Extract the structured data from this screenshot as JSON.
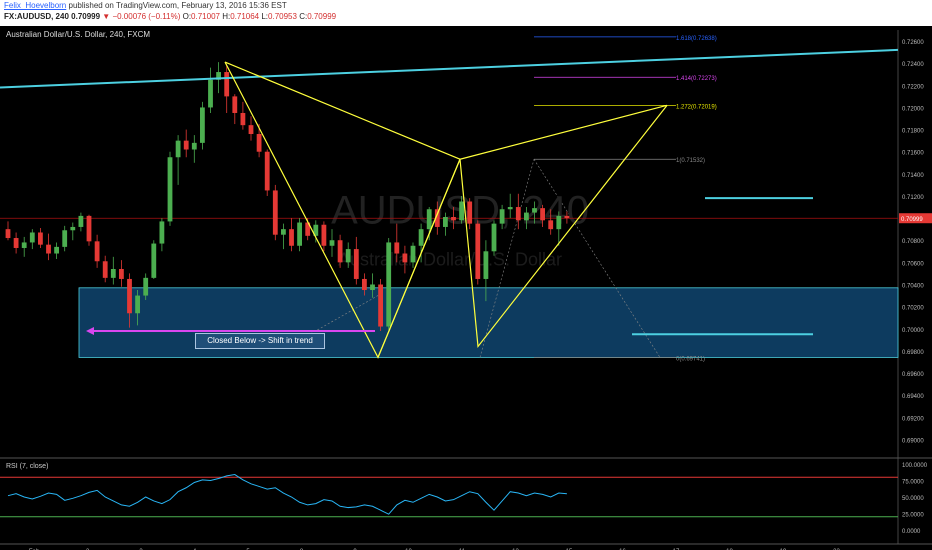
{
  "header": {
    "author": "Felix_Hoevelborn",
    "published": "published on TradingView.com, February 13, 2016 15:36 EST",
    "symbol_tf": "FX:AUDUSD, 240",
    "last_price": "0.70999",
    "change": "−0.00076 (−0.11%)",
    "ohlc": {
      "o_label": "O:",
      "o": "0.71007",
      "h_label": "H:",
      "h": "0.71064",
      "l_label": "L:",
      "l": "0.70953",
      "c_label": "C:",
      "c": "0.70999"
    }
  },
  "instrument_label": "Australian Dollar/U.S. Dollar, 240, FXCM",
  "callout_text": "Closed Below -> Shift in trend",
  "rsi_label": "RSI (7, close)",
  "colors": {
    "up": "#4caf50",
    "down": "#e53935",
    "trend": "#4dd0e1",
    "pattern": "#ffff3c",
    "zone_fill": "#0d3b5f",
    "zone_border": "#4dd0e1",
    "arrow": "#d946ef"
  },
  "chart_data": {
    "type": "candlestick",
    "y_axis_ticks": [
      "0.72600",
      "0.72400",
      "0.72200",
      "0.72000",
      "0.71800",
      "0.71600",
      "0.71400",
      "0.71200",
      "0.71000",
      "0.70800",
      "0.70600",
      "0.70400",
      "0.70200",
      "0.70000",
      "0.69800",
      "0.69600",
      "0.69400",
      "0.69200",
      "0.69000"
    ],
    "ylim": [
      0.6885,
      0.727
    ],
    "x_axis_ticks": [
      "Feb",
      "2",
      "3",
      "4",
      "5",
      "8",
      "9",
      "10",
      "11",
      "12",
      "15",
      "16",
      "17",
      "18",
      "19",
      "22"
    ],
    "current_price_label": "0.70999",
    "candles": [
      [
        0.709,
        0.7097,
        0.708,
        0.7082
      ],
      [
        0.7082,
        0.7087,
        0.7068,
        0.7073
      ],
      [
        0.7073,
        0.7083,
        0.7065,
        0.7078
      ],
      [
        0.7078,
        0.709,
        0.7072,
        0.7087
      ],
      [
        0.7087,
        0.7091,
        0.7073,
        0.7076
      ],
      [
        0.7076,
        0.7086,
        0.7062,
        0.7068
      ],
      [
        0.7068,
        0.7078,
        0.7063,
        0.7074
      ],
      [
        0.7074,
        0.7093,
        0.707,
        0.7089
      ],
      [
        0.7089,
        0.7096,
        0.708,
        0.7092
      ],
      [
        0.7092,
        0.7105,
        0.7088,
        0.7102
      ],
      [
        0.7102,
        0.7103,
        0.7075,
        0.7079
      ],
      [
        0.7079,
        0.7085,
        0.7055,
        0.7061
      ],
      [
        0.7061,
        0.7066,
        0.7042,
        0.7046
      ],
      [
        0.7046,
        0.7065,
        0.704,
        0.7054
      ],
      [
        0.7054,
        0.7062,
        0.7038,
        0.7045
      ],
      [
        0.7045,
        0.705,
        0.7001,
        0.7014
      ],
      [
        0.7014,
        0.7035,
        0.7003,
        0.703
      ],
      [
        0.703,
        0.705,
        0.7026,
        0.7046
      ],
      [
        0.7046,
        0.708,
        0.7045,
        0.7077
      ],
      [
        0.7077,
        0.71,
        0.707,
        0.7097
      ],
      [
        0.7097,
        0.716,
        0.7093,
        0.7155
      ],
      [
        0.7155,
        0.7175,
        0.713,
        0.717
      ],
      [
        0.717,
        0.718,
        0.7155,
        0.7162
      ],
      [
        0.7162,
        0.7175,
        0.715,
        0.7168
      ],
      [
        0.7168,
        0.7205,
        0.7162,
        0.72
      ],
      [
        0.72,
        0.7236,
        0.7195,
        0.7225
      ],
      [
        0.7225,
        0.7241,
        0.7213,
        0.7232
      ],
      [
        0.7232,
        0.7238,
        0.7195,
        0.721
      ],
      [
        0.721,
        0.7212,
        0.7185,
        0.7195
      ],
      [
        0.7195,
        0.7205,
        0.718,
        0.7184
      ],
      [
        0.7184,
        0.7192,
        0.717,
        0.7176
      ],
      [
        0.7176,
        0.7185,
        0.7155,
        0.716
      ],
      [
        0.716,
        0.7162,
        0.712,
        0.7125
      ],
      [
        0.7125,
        0.713,
        0.708,
        0.7085
      ],
      [
        0.7085,
        0.7095,
        0.7072,
        0.709
      ],
      [
        0.709,
        0.71,
        0.707,
        0.7075
      ],
      [
        0.7075,
        0.71,
        0.707,
        0.7096
      ],
      [
        0.7096,
        0.71,
        0.708,
        0.7084
      ],
      [
        0.7084,
        0.7098,
        0.7078,
        0.7094
      ],
      [
        0.7094,
        0.7097,
        0.707,
        0.7075
      ],
      [
        0.7075,
        0.709,
        0.7065,
        0.708
      ],
      [
        0.708,
        0.7085,
        0.7055,
        0.706
      ],
      [
        0.706,
        0.7078,
        0.7055,
        0.7072
      ],
      [
        0.7072,
        0.7083,
        0.704,
        0.7045
      ],
      [
        0.7045,
        0.705,
        0.703,
        0.7035
      ],
      [
        0.7035,
        0.705,
        0.7028,
        0.704
      ],
      [
        0.704,
        0.7045,
        0.6998,
        0.7002
      ],
      [
        0.7002,
        0.7082,
        0.6999,
        0.7078
      ],
      [
        0.7078,
        0.7095,
        0.706,
        0.7068
      ],
      [
        0.7068,
        0.7075,
        0.705,
        0.706
      ],
      [
        0.706,
        0.7078,
        0.7055,
        0.7075
      ],
      [
        0.7075,
        0.7095,
        0.706,
        0.709
      ],
      [
        0.709,
        0.711,
        0.708,
        0.7108
      ],
      [
        0.7108,
        0.7115,
        0.7085,
        0.7092
      ],
      [
        0.7092,
        0.7105,
        0.7084,
        0.7101
      ],
      [
        0.7101,
        0.711,
        0.709,
        0.7098
      ],
      [
        0.7098,
        0.712,
        0.7095,
        0.7115
      ],
      [
        0.7115,
        0.7118,
        0.709,
        0.7095
      ],
      [
        0.7095,
        0.7098,
        0.704,
        0.7045
      ],
      [
        0.7045,
        0.708,
        0.7025,
        0.707
      ],
      [
        0.707,
        0.7098,
        0.7066,
        0.7095
      ],
      [
        0.7095,
        0.7112,
        0.709,
        0.7108
      ],
      [
        0.7108,
        0.7122,
        0.71,
        0.711
      ],
      [
        0.711,
        0.7122,
        0.709,
        0.7098
      ],
      [
        0.7098,
        0.711,
        0.709,
        0.7105
      ],
      [
        0.7105,
        0.7115,
        0.7095,
        0.7109
      ],
      [
        0.7109,
        0.7112,
        0.7092,
        0.7098
      ],
      [
        0.7098,
        0.7108,
        0.7085,
        0.709
      ],
      [
        0.709,
        0.7106,
        0.7075,
        0.7102
      ],
      [
        0.7102,
        0.7106,
        0.7095,
        0.71
      ]
    ],
    "fib_levels": [
      {
        "label": "0(0.69741)",
        "value": 0.69741
      },
      {
        "label": "1(0.71532)",
        "value": 0.71532
      },
      {
        "label": "1.272(0.72019)",
        "value": 0.72019
      },
      {
        "label": "1.414(0.72273)",
        "value": 0.72273
      },
      {
        "label": "1.618(0.72638)",
        "value": 0.72638
      }
    ],
    "rsi_ticks": [
      "100.0000",
      "75.0000",
      "50.0000",
      "25.0000",
      "0.0000"
    ],
    "rsi_upper": 80,
    "rsi_lower": 20,
    "rsi": [
      52,
      55,
      50,
      47,
      51,
      56,
      54,
      45,
      48,
      52,
      57,
      60,
      50,
      44,
      38,
      36,
      42,
      50,
      44,
      40,
      46,
      58,
      64,
      72,
      76,
      75,
      78,
      82,
      84,
      76,
      70,
      66,
      62,
      64,
      56,
      50,
      42,
      38,
      40,
      46,
      44,
      36,
      34,
      35,
      38,
      36,
      30,
      24,
      38,
      45,
      42,
      48,
      54,
      50,
      44,
      46,
      52,
      58,
      55,
      42,
      30,
      44,
      58,
      56,
      52,
      56,
      54,
      50,
      56,
      55
    ]
  }
}
